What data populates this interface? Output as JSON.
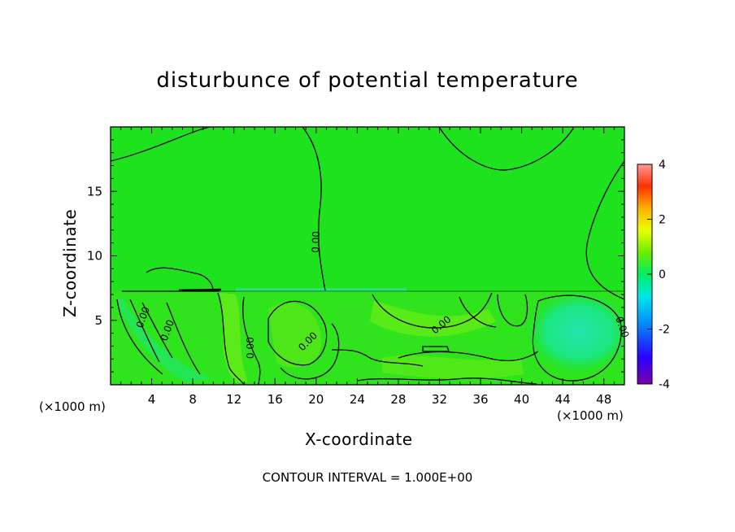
{
  "title": "disturbunce of potential temperature",
  "xlabel": "X-coordinate",
  "ylabel": "Z-coordinate",
  "x_unit_label_left": "(×1000 m)",
  "x_unit_label_right": "(×1000 m)",
  "footer": "CONTOUR INTERVAL = 1.000E+00",
  "chart_data": {
    "type": "heatmap",
    "title": "disturbunce of potential temperature",
    "xlabel": "X-coordinate",
    "ylabel": "Z-coordinate",
    "x_unit": "(×1000 m)",
    "xlim": [
      0,
      50
    ],
    "ylim": [
      0,
      20
    ],
    "x_ticks": [
      4,
      8,
      12,
      16,
      20,
      24,
      28,
      32,
      36,
      40,
      44,
      48
    ],
    "y_ticks": [
      5,
      10,
      15
    ],
    "contour_interval": "1.000E+00",
    "contour_labels": [
      "0.00",
      "0.00",
      "0.00",
      "0.00",
      "0.00",
      "0.00"
    ],
    "colorbar": {
      "range": [
        -4,
        4
      ],
      "ticks": [
        -4,
        -2,
        0,
        2,
        4
      ],
      "colors": [
        "#7a00a8",
        "#2b00ff",
        "#0090ff",
        "#00e6e6",
        "#00ee60",
        "#6cee00",
        "#e8ff00",
        "#ffb000",
        "#ff3000",
        "#ff9999"
      ]
    },
    "background_value": 0,
    "background_color": "#1de21d",
    "features": [
      {
        "region": "upper layer z>7",
        "value": 0
      },
      {
        "region": "blob near x=46, z=4",
        "value": -0.6
      },
      {
        "region": "warm streaks lower layer",
        "value": 0.3
      }
    ]
  }
}
